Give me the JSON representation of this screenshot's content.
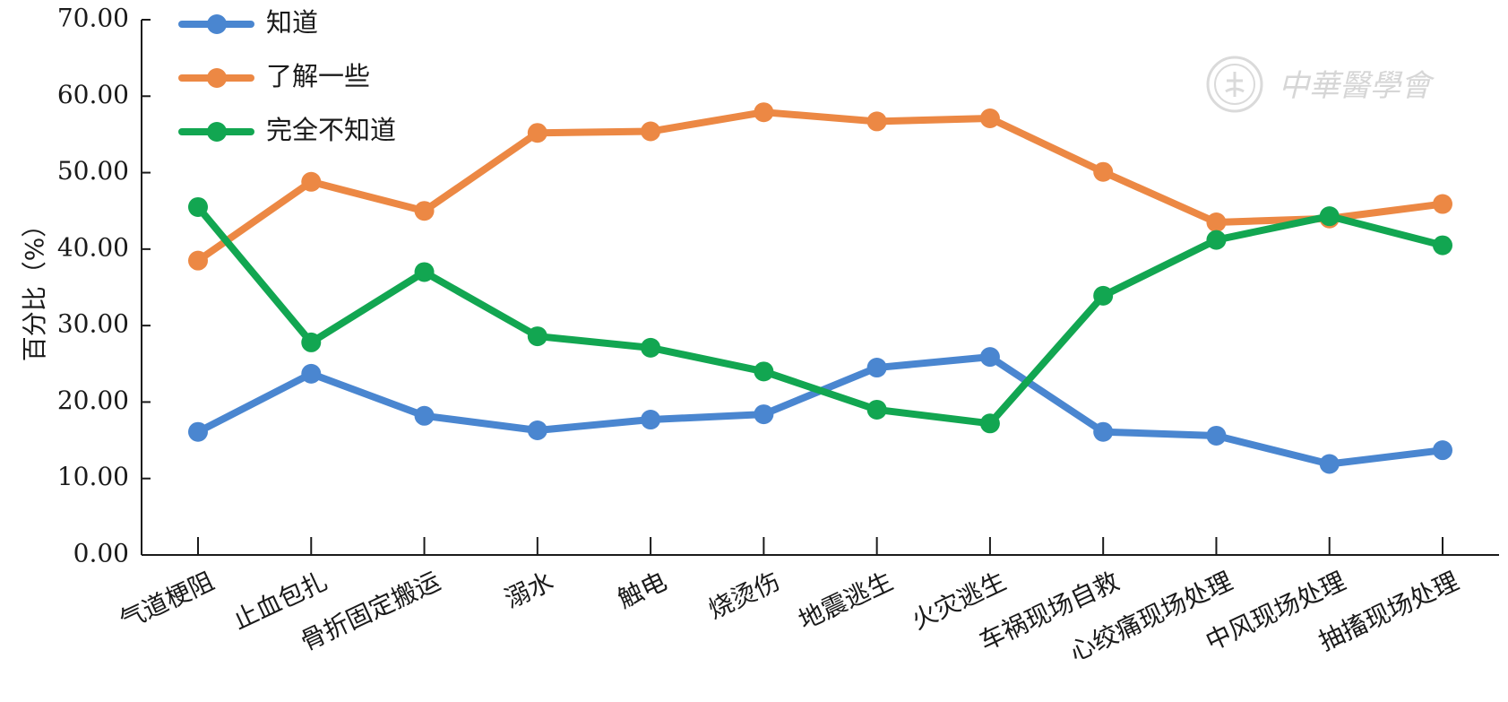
{
  "chart_data": {
    "type": "line",
    "ylabel": "百分比（%）",
    "ylim": [
      0,
      70
    ],
    "yticks": [
      "0.00",
      "10.00",
      "20.00",
      "30.00",
      "40.00",
      "50.00",
      "60.00",
      "70.00"
    ],
    "categories": [
      "气道梗阻",
      "止血包扎",
      "骨折固定搬运",
      "溺水",
      "触电",
      "烧烫伤",
      "地震逃生",
      "火灾逃生",
      "车祸现场自救",
      "心绞痛现场处理",
      "中风现场处理",
      "抽搐现场处理"
    ],
    "series": [
      {
        "name": "知道",
        "color": "#4a86d0",
        "values": [
          16.1,
          23.7,
          18.2,
          16.3,
          17.7,
          18.4,
          24.5,
          25.9,
          16.1,
          15.6,
          11.9,
          13.7
        ]
      },
      {
        "name": "了解一些",
        "color": "#ec8844",
        "values": [
          38.5,
          48.8,
          45.0,
          55.2,
          55.4,
          57.9,
          56.7,
          57.1,
          50.1,
          43.5,
          44.0,
          45.9
        ]
      },
      {
        "name": "完全不知道",
        "color": "#12a651",
        "values": [
          45.5,
          27.8,
          37.0,
          28.6,
          27.1,
          24.0,
          19.0,
          17.2,
          33.9,
          41.2,
          44.3,
          40.5
        ]
      }
    ],
    "legend_position": "top-left",
    "grid": false
  },
  "watermark": {
    "text": "中華醫學會"
  }
}
